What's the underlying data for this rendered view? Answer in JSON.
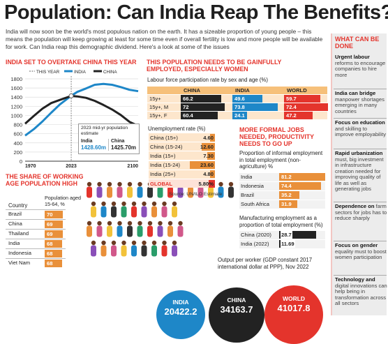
{
  "title": "Population: Can India Reap The Benefits?",
  "intro": "India will now soon be the world's most populous nation on the earth. It has a sizeable proportion of young people – this means the population will keep growing at least for some time even if overall fertility is low and more people will be available for work. Can India reap this demographic dividend. Here's a look at some of the issues",
  "colors": {
    "accent": "#e4342c",
    "orange": "#e9903a",
    "india": "#1e87c8",
    "china": "#222222",
    "world": "#e4342c",
    "rail_bg": "#ececec"
  },
  "overtake": {
    "heading": "INDIA SET TO OVERTAKE CHINA THIS YEAR",
    "legend_this_year": "THIS YEAR",
    "legend_india": "INDIA",
    "legend_china": "CHINA",
    "callout_title": "2023 mid-yr population estimate",
    "callout_india_label": "India",
    "callout_india_value": "1428.60m",
    "callout_china_label": "China",
    "callout_china_value": "1425.70m",
    "year_label": "2023"
  },
  "youth": {
    "heading": "THE SHARE OF WORKING AGE POPULATION HIGH",
    "col_country": "Country",
    "col_value": "Population aged 15-64, %"
  },
  "employ": {
    "heading": "THIS POPULATION NEEDS TO BE GAINFULLY EMPLOYED, ESPECIALLY WOMEN",
    "lfp_title": "Labour force participation rate by sex and age (%)",
    "unemp_title": "Unemployment rate (%)",
    "source": "Source: UN/ILO Estimate"
  },
  "formal": {
    "heading": "MORE FORMAL JOBS NEEDED, PRODUCTIVITY NEEDS TO GO UP",
    "informal_title": "Proportion of informal employment in total employment (non-agriculture) %",
    "manu_title": "Manufacturing employment as a proportion of total employment (%)",
    "output_title": "Output per worker (GDP constant 2017 international dollar at PPP), Nov 2022"
  },
  "rail": {
    "heading": "WHAT CAN BE DONE",
    "items": [
      {
        "bold": "Urgent labour",
        "rest": "reforms to encourage companies to hire more"
      },
      {
        "bold": "India can bridge",
        "rest": "manpower shortages emerging in many countries"
      },
      {
        "bold": "Focus on education",
        "rest": "and skilling to improve employability"
      },
      {
        "bold": "Rapid urbanization",
        "rest": "must, big investment in infrastructure creation needed for improving quality of life as well as generating jobs"
      },
      {
        "bold": "Dependence on",
        "rest": "farm sectors for jobs has to reduce sharply"
      },
      {
        "bold": "Focus on gender",
        "rest": "equality must to boost women participation"
      },
      {
        "bold": "Technology and",
        "rest": "digital innovations can help being in transformation across all sectors"
      }
    ]
  },
  "chart_data": [
    {
      "type": "line",
      "title": "INDIA SET TO OVERTAKE CHINA THIS YEAR",
      "x": [
        1970,
        1980,
        1990,
        2000,
        2010,
        2023,
        2030,
        2040,
        2050,
        2060,
        2070,
        2080,
        2090,
        2100
      ],
      "x_ticks": [
        "1970",
        "2023",
        "2100"
      ],
      "y_ticks": [
        0,
        200,
        400,
        600,
        800,
        1000,
        1200,
        1400,
        1600,
        1800
      ],
      "ylim": [
        0,
        1800
      ],
      "series": [
        {
          "name": "INDIA",
          "values": [
            560,
            700,
            870,
            1060,
            1240,
            1428.6,
            1515,
            1590,
            1670,
            1690,
            1670,
            1620,
            1560,
            1530
          ]
        },
        {
          "name": "CHINA",
          "values": [
            820,
            990,
            1150,
            1270,
            1340,
            1425.7,
            1415,
            1385,
            1320,
            1230,
            1130,
            1010,
            860,
            770
          ]
        }
      ],
      "marker_x": 2023,
      "grid": true
    },
    {
      "type": "bar",
      "title": "THE SHARE OF WORKING AGE POPULATION HIGH",
      "categories": [
        "Brazil",
        "China",
        "Thailand",
        "India",
        "Indonesia",
        "Viet Nam"
      ],
      "values": [
        70,
        69,
        69,
        68,
        68,
        68
      ]
    },
    {
      "type": "table",
      "title": "Labour force participation rate by sex and age (%)",
      "columns": [
        "CHINA",
        "INDIA",
        "WORLD"
      ],
      "rows": [
        {
          "label": "15y+",
          "values": [
            66.2,
            49.6,
            59.7
          ]
        },
        {
          "label": "15y+, M",
          "values": [
            72,
            73.8,
            72.4
          ]
        },
        {
          "label": "15y+, F",
          "values": [
            60.4,
            24.1,
            47.2
          ]
        }
      ]
    },
    {
      "type": "bar",
      "title": "Unemployment rate (%)",
      "categories": [
        "China (15+)",
        "China (15-24)",
        "India (15+)",
        "India (15-24)",
        "India (25+)",
        "GLOBAL"
      ],
      "values": [
        4.6,
        12.6,
        7.3,
        23.6,
        4.8,
        5.8
      ],
      "value_labels": [
        "4.60",
        "12.60",
        "7.30",
        "23.60",
        "4.80",
        "5.80%"
      ]
    },
    {
      "type": "bar",
      "title": "Proportion of informal employment in total employment (non-agriculture) %",
      "categories": [
        "India",
        "Indonesia",
        "Brazil",
        "South Africa"
      ],
      "values": [
        81.2,
        74.4,
        35.2,
        31.9
      ]
    },
    {
      "type": "bar",
      "title": "Manufacturing employment as a proportion of total employment (%)",
      "categories": [
        "China (2020)",
        "India (2022)"
      ],
      "values": [
        28.7,
        11.69
      ]
    },
    {
      "type": "bar",
      "title": "Output per worker (GDP constant 2017 international dollar at PPP), Nov 2022",
      "categories": [
        "INDIA",
        "CHINA",
        "WORLD"
      ],
      "values": [
        20422.2,
        34163.7,
        41017.8
      ]
    }
  ]
}
